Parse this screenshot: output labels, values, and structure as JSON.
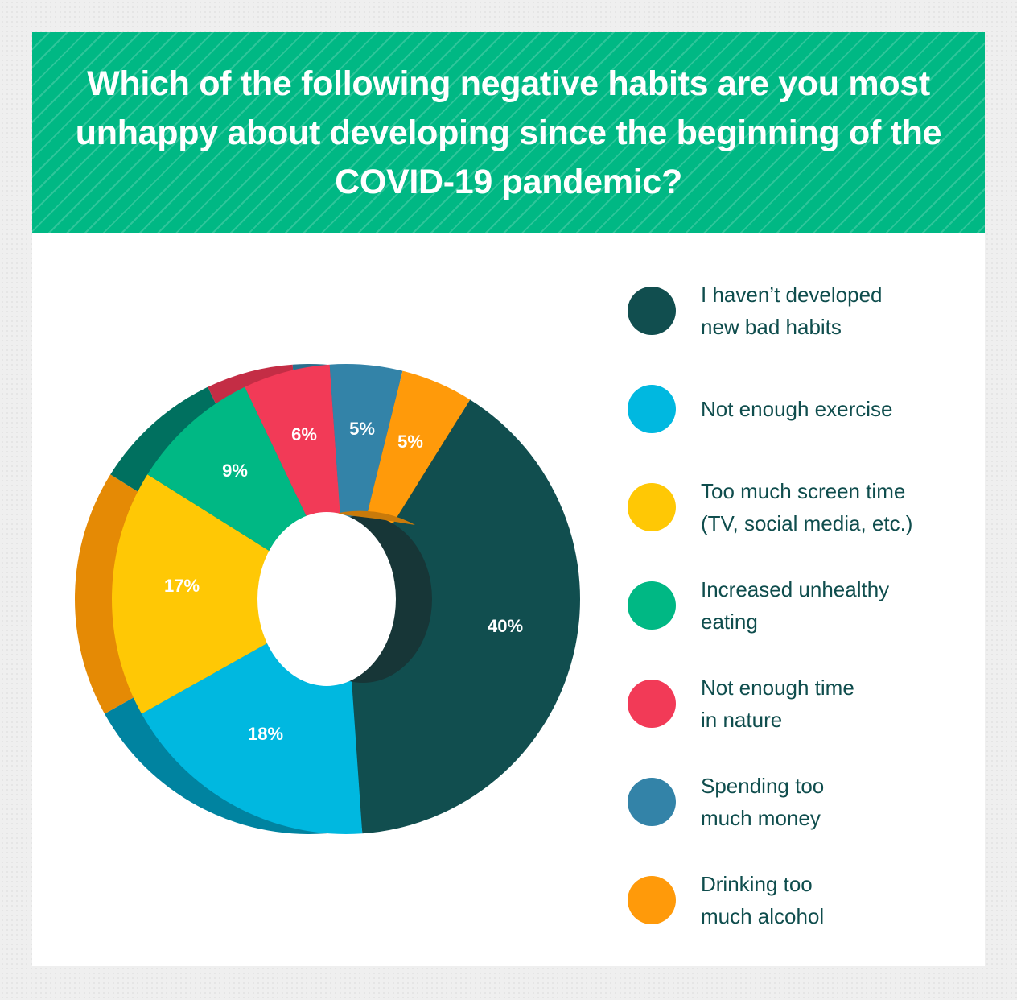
{
  "header": {
    "title": "Which of the following negative habits are you most unhappy about developing since the beginning of the COVID-19 pandemic?"
  },
  "colors": {
    "header_bg": "#00b884",
    "page_bg": "#efefef",
    "card_bg": "#ffffff",
    "legend_text": "#0f4d4d"
  },
  "legend": {
    "items": [
      {
        "label": "I haven’t developed\nnew bad habits",
        "color": "#114e4f"
      },
      {
        "label": "Not enough exercise",
        "color": "#00b8e0"
      },
      {
        "label": "Too much screen time\n(TV, social media, etc.)",
        "color": "#ffc805"
      },
      {
        "label": "Increased unhealthy\neating",
        "color": "#00b884"
      },
      {
        "label": "Not enough time\nin nature",
        "color": "#f23a57"
      },
      {
        "label": "Spending too\nmuch money",
        "color": "#3383a8"
      },
      {
        "label": "Drinking too\nmuch alcohol",
        "color": "#ff9a0a"
      }
    ]
  },
  "chart_data": {
    "type": "pie",
    "subtype": "donut-3d",
    "title": "Which of the following negative habits are you most unhappy about developing since the beginning of the COVID-19 pandemic?",
    "categories": [
      "I haven’t developed new bad habits",
      "Not enough exercise",
      "Too much screen time (TV, social media, etc.)",
      "Increased unhealthy eating",
      "Not enough time in nature",
      "Spending too much money",
      "Drinking too much alcohol"
    ],
    "values": [
      40,
      18,
      17,
      9,
      6,
      5,
      5
    ],
    "labels": [
      "40%",
      "18%",
      "17%",
      "9%",
      "6%",
      "5%",
      "5%"
    ],
    "colors": [
      "#114e4f",
      "#00b8e0",
      "#ffc805",
      "#00b884",
      "#f23a57",
      "#3383a8",
      "#ff9a0a"
    ],
    "side_colors": [
      "#173637",
      "#0083a0",
      "#e58a05",
      "#00705f",
      "#c42d45",
      "#2a6e8d",
      "#c97a0a"
    ],
    "start_angle_deg": 32,
    "legend_position": "right",
    "unit": "%"
  }
}
